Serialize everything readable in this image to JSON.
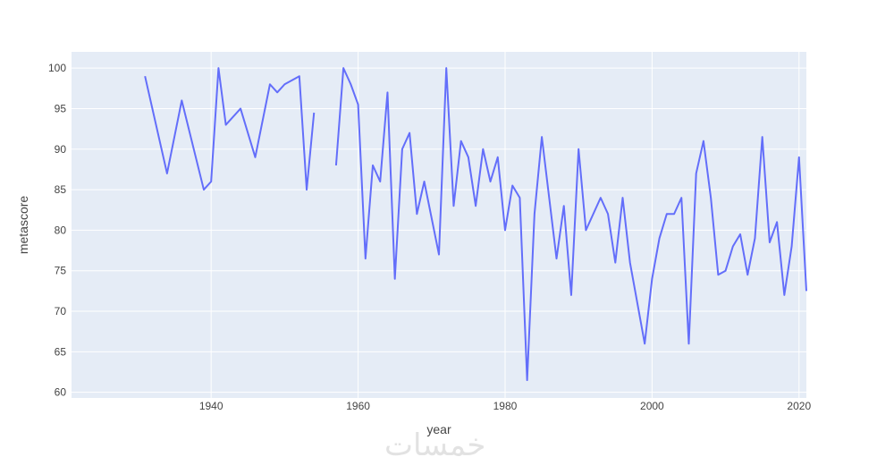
{
  "chart_data": {
    "type": "line",
    "xlabel": "year",
    "ylabel": "metascore",
    "xlim": [
      1921,
      2021
    ],
    "ylim": [
      59.3,
      102
    ],
    "x_ticks": [
      1940,
      1960,
      1980,
      2000,
      2020
    ],
    "y_ticks": [
      60,
      65,
      70,
      75,
      80,
      85,
      90,
      95,
      100
    ],
    "grid": true,
    "series": [
      {
        "color": "#636efa",
        "points": [
          [
            1931,
            99
          ],
          [
            1934,
            87
          ],
          [
            1936,
            96
          ],
          [
            1939,
            85
          ],
          [
            1940,
            86
          ],
          [
            1941,
            100
          ],
          [
            1942,
            93
          ],
          [
            1944,
            95
          ],
          [
            1946,
            89
          ],
          [
            1948,
            98
          ],
          [
            1949,
            97
          ],
          [
            1950,
            98
          ],
          [
            1952,
            99
          ],
          [
            1953,
            85
          ],
          [
            1954,
            94.5
          ],
          [
            1955,
            null
          ],
          [
            1957,
            88
          ],
          [
            1958,
            100
          ],
          [
            1959,
            98
          ],
          [
            1960,
            95.5
          ],
          [
            1961,
            76.5
          ],
          [
            1962,
            88
          ],
          [
            1963,
            86
          ],
          [
            1964,
            97
          ],
          [
            1965,
            74
          ],
          [
            1966,
            90
          ],
          [
            1967,
            92
          ],
          [
            1968,
            82
          ],
          [
            1969,
            86
          ],
          [
            1971,
            77
          ],
          [
            1972,
            100
          ],
          [
            1973,
            83
          ],
          [
            1974,
            91
          ],
          [
            1975,
            89
          ],
          [
            1976,
            83
          ],
          [
            1977,
            90
          ],
          [
            1978,
            86
          ],
          [
            1979,
            89
          ],
          [
            1980,
            80
          ],
          [
            1981,
            85.5
          ],
          [
            1982,
            84
          ],
          [
            1983,
            61.5
          ],
          [
            1984,
            82
          ],
          [
            1985,
            91.5
          ],
          [
            1987,
            76.5
          ],
          [
            1988,
            83
          ],
          [
            1989,
            72
          ],
          [
            1990,
            90
          ],
          [
            1991,
            80
          ],
          [
            1993,
            84
          ],
          [
            1994,
            82
          ],
          [
            1995,
            76
          ],
          [
            1996,
            84
          ],
          [
            1997,
            76
          ],
          [
            1999,
            66
          ],
          [
            2000,
            74
          ],
          [
            2001,
            79
          ],
          [
            2002,
            82
          ],
          [
            2003,
            82
          ],
          [
            2004,
            84
          ],
          [
            2005,
            66
          ],
          [
            2006,
            87
          ],
          [
            2007,
            91
          ],
          [
            2008,
            84
          ],
          [
            2009,
            74.5
          ],
          [
            2010,
            75
          ],
          [
            2011,
            78
          ],
          [
            2012,
            79.5
          ],
          [
            2013,
            74.5
          ],
          [
            2014,
            79
          ],
          [
            2015,
            91.5
          ],
          [
            2016,
            78.5
          ],
          [
            2017,
            81
          ],
          [
            2018,
            72
          ],
          [
            2019,
            78
          ],
          [
            2020,
            89
          ],
          [
            2021,
            72.5
          ]
        ]
      }
    ]
  },
  "colors": {
    "plot_bg": "#e5ecf6",
    "grid": "#ffffff",
    "line": "#636efa",
    "text": "#444444"
  },
  "watermark_text": "خمسات"
}
